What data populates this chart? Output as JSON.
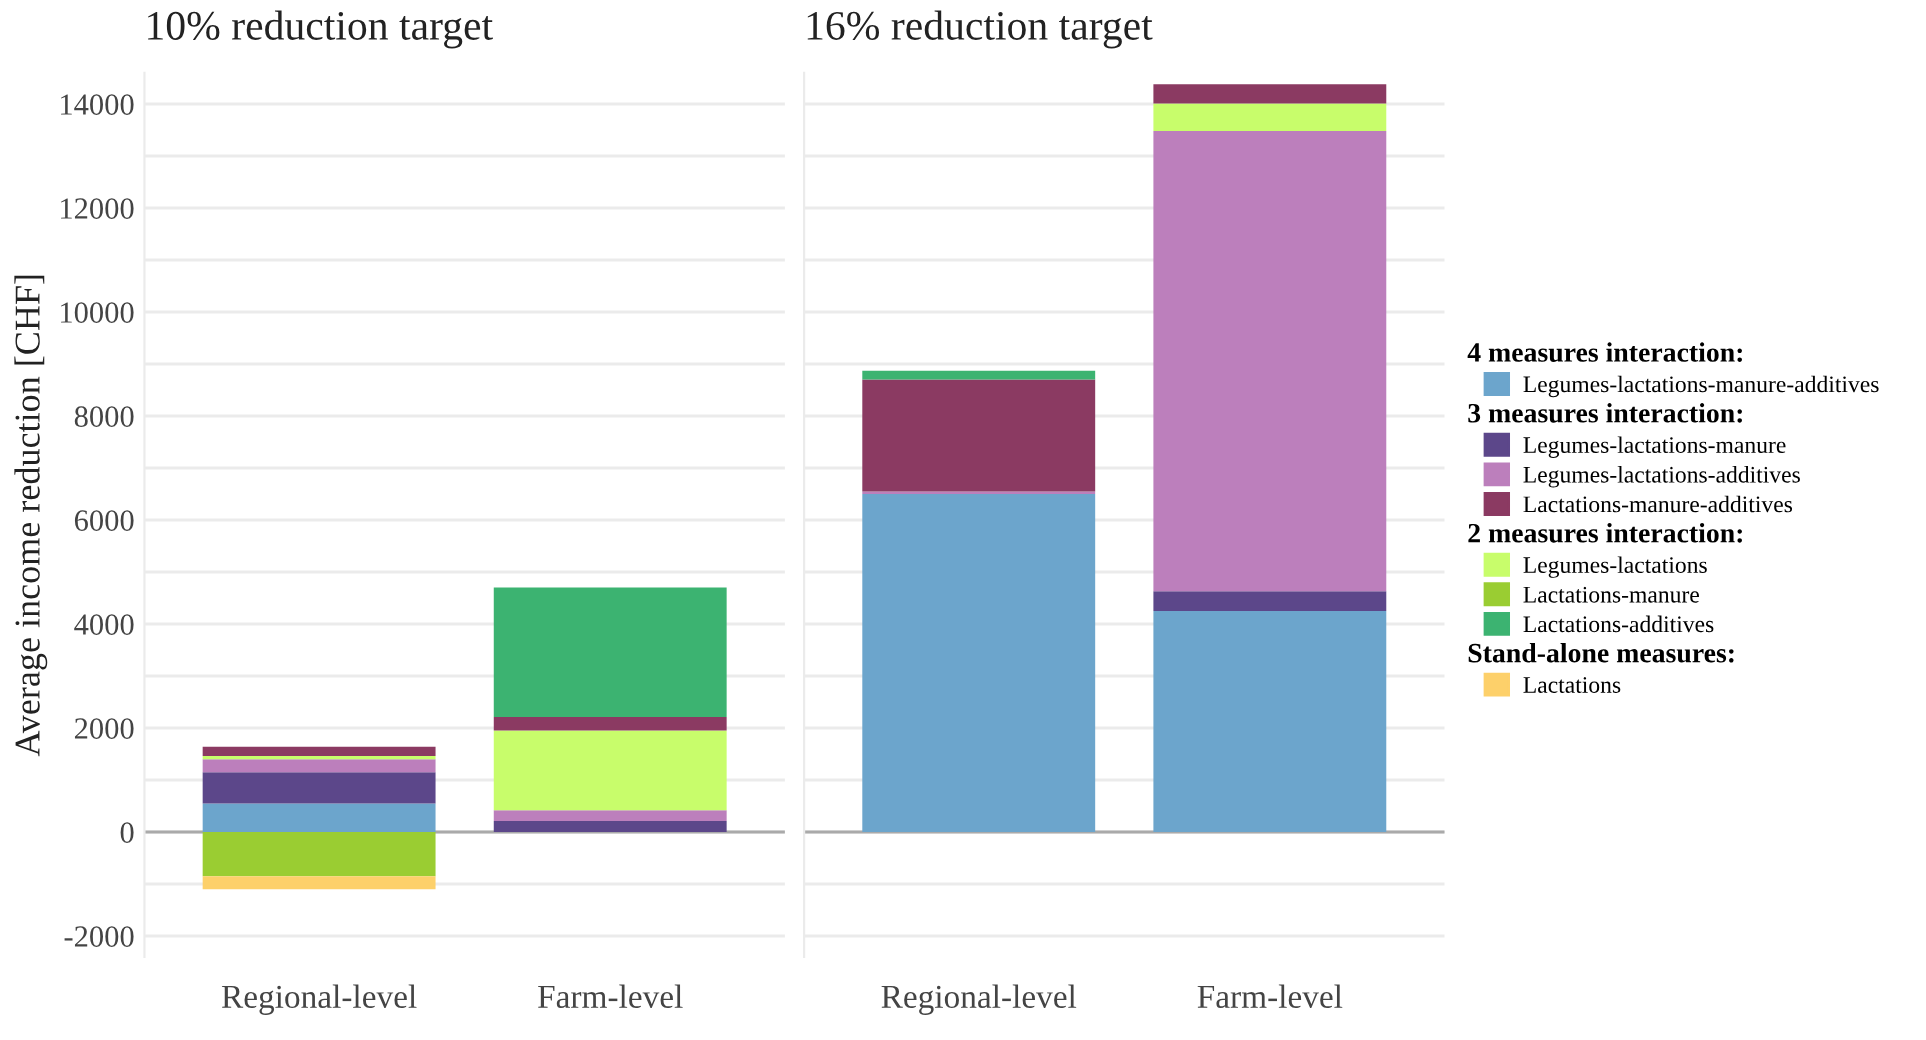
{
  "chart_data": [
    {
      "type": "bar",
      "stacked": true,
      "title": "10% reduction target",
      "ylabel": "Average income reduction [CHF]",
      "categories": [
        "Regional-level",
        "Farm-level"
      ],
      "ylim": [
        -2400,
        14600
      ],
      "yticks": [
        -2000,
        {
          "value": -1000,
          "label": null
        },
        0,
        {
          "value": 1000,
          "label": null
        },
        2000,
        {
          "value": 3000,
          "label": null
        },
        4000,
        {
          "value": 5000,
          "label": null
        },
        6000,
        {
          "value": 7000,
          "label": null
        },
        8000,
        {
          "value": 9000,
          "label": null
        },
        10000,
        {
          "value": 11000,
          "label": null
        },
        12000,
        {
          "value": 13000,
          "label": null
        },
        14000
      ],
      "grid": "y",
      "legend": "right",
      "ref_lines": [
        {
          "axis": "y",
          "value": 0,
          "color": "#aaaaaa"
        }
      ],
      "annotations": [
        "4 measures interaction:",
        "3 measures interaction:",
        "2 measures interaction:",
        "Stand-alone measures:"
      ],
      "series": [
        {
          "name": "Legumes-lactations-manure-additives",
          "color": "#6ca5cc",
          "values": [
            550,
            null
          ]
        },
        {
          "name": "Legumes-lactations-manure",
          "color": "#5c478a",
          "values": [
            600,
            210
          ]
        },
        {
          "name": "Legumes-lactations-additives",
          "color": "#bc7fbc",
          "values": [
            250,
            210
          ]
        },
        {
          "name": "Legumes-lactations",
          "color": "#c8fd6b",
          "values": [
            60,
            1530
          ]
        },
        {
          "name": "Lactations-manure-additives",
          "color": "#8b3a62",
          "values": [
            180,
            260
          ]
        },
        {
          "name": "Lactations-additives",
          "color": "#3cb371",
          "values": [
            null,
            2490
          ]
        },
        {
          "name": "Lactations-manure",
          "color": "#9acd32",
          "values": [
            -850,
            null
          ]
        },
        {
          "name": "Lactations",
          "color": "#fdd06a",
          "values": [
            -250,
            null
          ]
        }
      ]
    },
    {
      "type": "bar",
      "stacked": true,
      "title": "16% reduction target",
      "categories": [
        "Regional-level",
        "Farm-level"
      ],
      "ylim": [
        -2400,
        14600
      ],
      "yticks": [
        -2000,
        {
          "value": -1000,
          "label": null
        },
        0,
        {
          "value": 1000,
          "label": null
        },
        2000,
        {
          "value": 3000,
          "label": null
        },
        4000,
        {
          "value": 5000,
          "label": null
        },
        6000,
        {
          "value": 7000,
          "label": null
        },
        8000,
        {
          "value": 9000,
          "label": null
        },
        10000,
        {
          "value": 11000,
          "label": null
        },
        12000,
        {
          "value": 13000,
          "label": null
        },
        14000
      ],
      "tick_labels": "x",
      "grid": "y",
      "ref_lines": [
        {
          "axis": "y",
          "value": 0,
          "color": "#aaaaaa"
        }
      ],
      "series": [
        {
          "color": "#6ca5cc",
          "values": [
            6500,
            4250
          ]
        },
        {
          "color": "#5c478a",
          "values": [
            null,
            380
          ]
        },
        {
          "color": "#bc7fbc",
          "values": [
            50,
            8850
          ]
        },
        {
          "color": "#c8fd6b",
          "values": [
            null,
            530
          ]
        },
        {
          "color": "#8b3a62",
          "values": [
            2150,
            370
          ]
        },
        {
          "color": "#3cb371",
          "values": [
            170,
            null
          ]
        },
        {
          "color": "#9acd32",
          "values": [
            null,
            null
          ]
        },
        {
          "color": "#fdd06a",
          "values": [
            null,
            null
          ]
        }
      ]
    }
  ]
}
